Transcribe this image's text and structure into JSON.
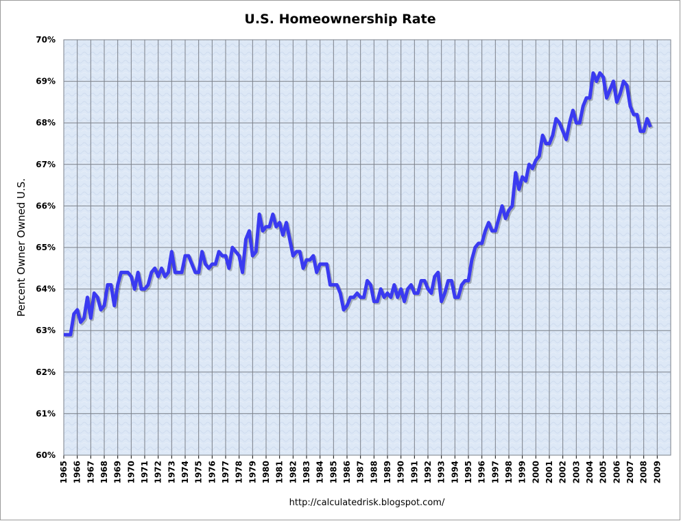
{
  "chart_data": {
    "type": "line",
    "title": "U.S. Homeownership Rate",
    "y_label": "Percent Owner Owned U.S.",
    "source": "http://calculatedrisk.blogspot.com/",
    "xlim": [
      1965,
      2010
    ],
    "xticks": [
      1965,
      1966,
      1967,
      1968,
      1969,
      1970,
      1971,
      1972,
      1973,
      1974,
      1975,
      1976,
      1977,
      1978,
      1979,
      1980,
      1981,
      1982,
      1983,
      1984,
      1985,
      1986,
      1987,
      1988,
      1989,
      1990,
      1991,
      1992,
      1993,
      1994,
      1995,
      1996,
      1997,
      1998,
      1999,
      2000,
      2001,
      2002,
      2003,
      2004,
      2005,
      2006,
      2007,
      2008,
      2009
    ],
    "ylim": [
      60,
      70
    ],
    "yticks": [
      {
        "value": 60,
        "label": "60%"
      },
      {
        "value": 61,
        "label": "61%"
      },
      {
        "value": 62,
        "label": "62%"
      },
      {
        "value": 63,
        "label": "63%"
      },
      {
        "value": 64,
        "label": "64%"
      },
      {
        "value": 65,
        "label": "65%"
      },
      {
        "value": 66,
        "label": "66%"
      },
      {
        "value": 67,
        "label": "67%"
      },
      {
        "value": 68,
        "label": "68%"
      },
      {
        "value": 69,
        "label": "69%"
      },
      {
        "value": 70,
        "label": "70%"
      }
    ],
    "grid": true,
    "x": [
      1965,
      1965.25,
      1965.5,
      1965.75,
      1966,
      1966.25,
      1966.5,
      1966.75,
      1967,
      1967.25,
      1967.5,
      1967.75,
      1968,
      1968.25,
      1968.5,
      1968.75,
      1969,
      1969.25,
      1969.5,
      1969.75,
      1970,
      1970.25,
      1970.5,
      1970.75,
      1971,
      1971.25,
      1971.5,
      1971.75,
      1972,
      1972.25,
      1972.5,
      1972.75,
      1973,
      1973.25,
      1973.5,
      1973.75,
      1974,
      1974.25,
      1974.5,
      1974.75,
      1975,
      1975.25,
      1975.5,
      1975.75,
      1976,
      1976.25,
      1976.5,
      1976.75,
      1977,
      1977.25,
      1977.5,
      1977.75,
      1978,
      1978.25,
      1978.5,
      1978.75,
      1979,
      1979.25,
      1979.5,
      1979.75,
      1980,
      1980.25,
      1980.5,
      1980.75,
      1981,
      1981.25,
      1981.5,
      1981.75,
      1982,
      1982.25,
      1982.5,
      1982.75,
      1983,
      1983.25,
      1983.5,
      1983.75,
      1984,
      1984.25,
      1984.5,
      1984.75,
      1985,
      1985.25,
      1985.5,
      1985.75,
      1986,
      1986.25,
      1986.5,
      1986.75,
      1987,
      1987.25,
      1987.5,
      1987.75,
      1988,
      1988.25,
      1988.5,
      1988.75,
      1989,
      1989.25,
      1989.5,
      1989.75,
      1990,
      1990.25,
      1990.5,
      1990.75,
      1991,
      1991.25,
      1991.5,
      1991.75,
      1992,
      1992.25,
      1992.5,
      1992.75,
      1993,
      1993.25,
      1993.5,
      1993.75,
      1994,
      1994.25,
      1994.5,
      1994.75,
      1995,
      1995.25,
      1995.5,
      1995.75,
      1996,
      1996.25,
      1996.5,
      1996.75,
      1997,
      1997.25,
      1997.5,
      1997.75,
      1998,
      1998.25,
      1998.5,
      1998.75,
      1999,
      1999.25,
      1999.5,
      1999.75,
      2000,
      2000.25,
      2000.5,
      2000.75,
      2001,
      2001.25,
      2001.5,
      2001.75,
      2002,
      2002.25,
      2002.5,
      2002.75,
      2003,
      2003.25,
      2003.5,
      2003.75,
      2004,
      2004.25,
      2004.5,
      2004.75,
      2005,
      2005.25,
      2005.5,
      2005.75,
      2006,
      2006.25,
      2006.5,
      2006.75,
      2007,
      2007.25,
      2007.5,
      2007.75,
      2008,
      2008.25,
      2008.5
    ],
    "series": [
      {
        "color": "#3a3af0",
        "values": [
          62.9,
          62.9,
          62.9,
          63.4,
          63.5,
          63.2,
          63.3,
          63.8,
          63.3,
          63.9,
          63.8,
          63.5,
          63.6,
          64.1,
          64.1,
          63.6,
          64.1,
          64.4,
          64.4,
          64.4,
          64.3,
          64.0,
          64.4,
          64.0,
          64.0,
          64.1,
          64.4,
          64.5,
          64.3,
          64.5,
          64.3,
          64.4,
          64.9,
          64.4,
          64.4,
          64.4,
          64.8,
          64.8,
          64.6,
          64.4,
          64.4,
          64.9,
          64.6,
          64.5,
          64.6,
          64.6,
          64.9,
          64.8,
          64.8,
          64.5,
          65.0,
          64.9,
          64.8,
          64.4,
          65.2,
          65.4,
          64.8,
          64.9,
          65.8,
          65.4,
          65.5,
          65.5,
          65.8,
          65.5,
          65.6,
          65.3,
          65.6,
          65.2,
          64.8,
          64.9,
          64.9,
          64.5,
          64.7,
          64.7,
          64.8,
          64.4,
          64.6,
          64.6,
          64.6,
          64.1,
          64.1,
          64.1,
          63.9,
          63.5,
          63.6,
          63.8,
          63.8,
          63.9,
          63.8,
          63.8,
          64.2,
          64.1,
          63.7,
          63.7,
          64.0,
          63.8,
          63.9,
          63.8,
          64.1,
          63.8,
          64.0,
          63.7,
          64.0,
          64.1,
          63.9,
          63.9,
          64.2,
          64.2,
          64.0,
          63.9,
          64.3,
          64.4,
          63.7,
          63.9,
          64.2,
          64.2,
          63.8,
          63.8,
          64.1,
          64.2,
          64.2,
          64.7,
          65.0,
          65.1,
          65.1,
          65.4,
          65.6,
          65.4,
          65.4,
          65.7,
          66.0,
          65.7,
          65.9,
          66.0,
          66.8,
          66.4,
          66.7,
          66.6,
          67.0,
          66.9,
          67.1,
          67.2,
          67.7,
          67.5,
          67.5,
          67.7,
          68.1,
          68.0,
          67.8,
          67.6,
          68.0,
          68.3,
          68.0,
          68.0,
          68.4,
          68.6,
          68.6,
          69.2,
          69.0,
          69.2,
          69.1,
          68.6,
          68.8,
          69.0,
          68.5,
          68.7,
          69.0,
          68.9,
          68.4,
          68.2,
          68.2,
          67.8,
          67.8,
          68.1,
          67.9
        ]
      }
    ]
  }
}
